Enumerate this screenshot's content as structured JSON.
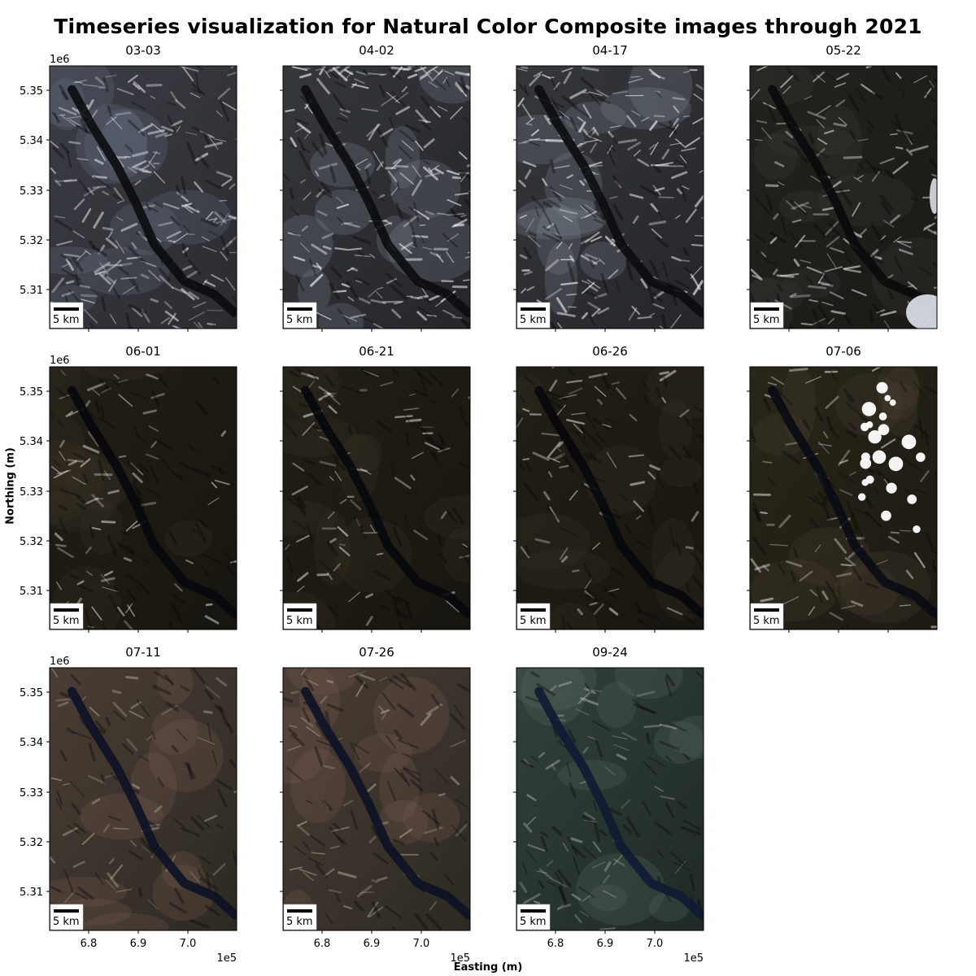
{
  "title": "Timeseries visualization for Natural Color Composite images through 2021",
  "xlabel": "Easting (m)",
  "ylabel": "Northing (m)",
  "x_offset_label": "1e5",
  "y_offset_label": "1e6",
  "x_ticks": [
    "6.8",
    "6.9",
    "7.0"
  ],
  "y_ticks": [
    "5.35",
    "5.34",
    "5.33",
    "5.32",
    "5.31"
  ],
  "scalebar_label": "5 km",
  "panels": [
    {
      "date": "03-03",
      "style": "snowwinter"
    },
    {
      "date": "04-02",
      "style": "snowbright"
    },
    {
      "date": "04-17",
      "style": "snowbright"
    },
    {
      "date": "05-22",
      "style": "snowmid"
    },
    {
      "date": "06-01",
      "style": "snowlow"
    },
    {
      "date": "06-21",
      "style": "snowlow"
    },
    {
      "date": "06-26",
      "style": "snowlow"
    },
    {
      "date": "07-06",
      "style": "snowcloud"
    },
    {
      "date": "07-11",
      "style": "summer"
    },
    {
      "date": "07-26",
      "style": "summer"
    },
    {
      "date": "09-24",
      "style": "autumn"
    }
  ]
}
